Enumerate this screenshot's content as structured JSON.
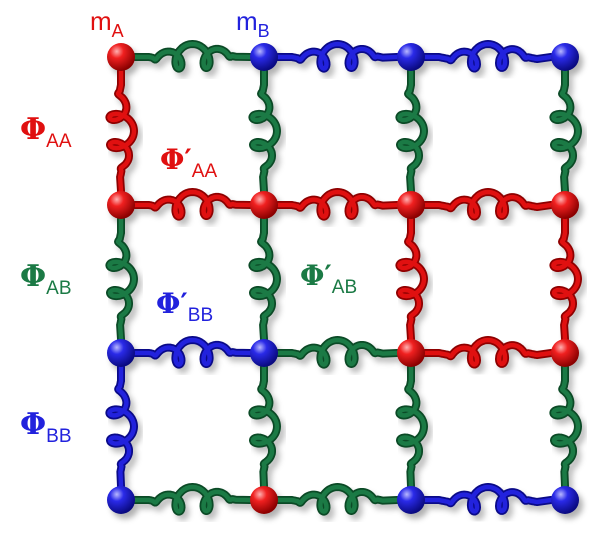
{
  "colors": {
    "A": "#e01010",
    "B": "#2222dd",
    "AB": "#1b7a45",
    "A_dark": "#8e0000",
    "B_dark": "#0a0a88",
    "AB_dark": "#0b4a26"
  },
  "labels": {
    "m_A": {
      "main": "m",
      "sub": "A",
      "color": "#e01010"
    },
    "m_B": {
      "main": "m",
      "sub": "B",
      "color": "#2222dd"
    },
    "phi_AA": {
      "main": "Φ",
      "sub": "AA",
      "color": "#e01010"
    },
    "phi_AA_p": {
      "main": "Φ′",
      "sub": "AA",
      "color": "#e01010"
    },
    "phi_AB": {
      "main": "Φ",
      "sub": "AB",
      "color": "#1b7a45"
    },
    "phi_AB_p": {
      "main": "Φ′",
      "sub": "AB",
      "color": "#1b7a45"
    },
    "phi_BB_p": {
      "main": "Φ′",
      "sub": "BB",
      "color": "#2222dd"
    },
    "phi_BB": {
      "main": "Φ",
      "sub": "BB",
      "color": "#2222dd"
    }
  },
  "lattice": {
    "masses": [
      [
        "A",
        "B",
        "B",
        "B"
      ],
      [
        "A",
        "A",
        "A",
        "A"
      ],
      [
        "B",
        "B",
        "A",
        "A"
      ],
      [
        "B",
        "A",
        "B",
        "B"
      ]
    ]
  }
}
